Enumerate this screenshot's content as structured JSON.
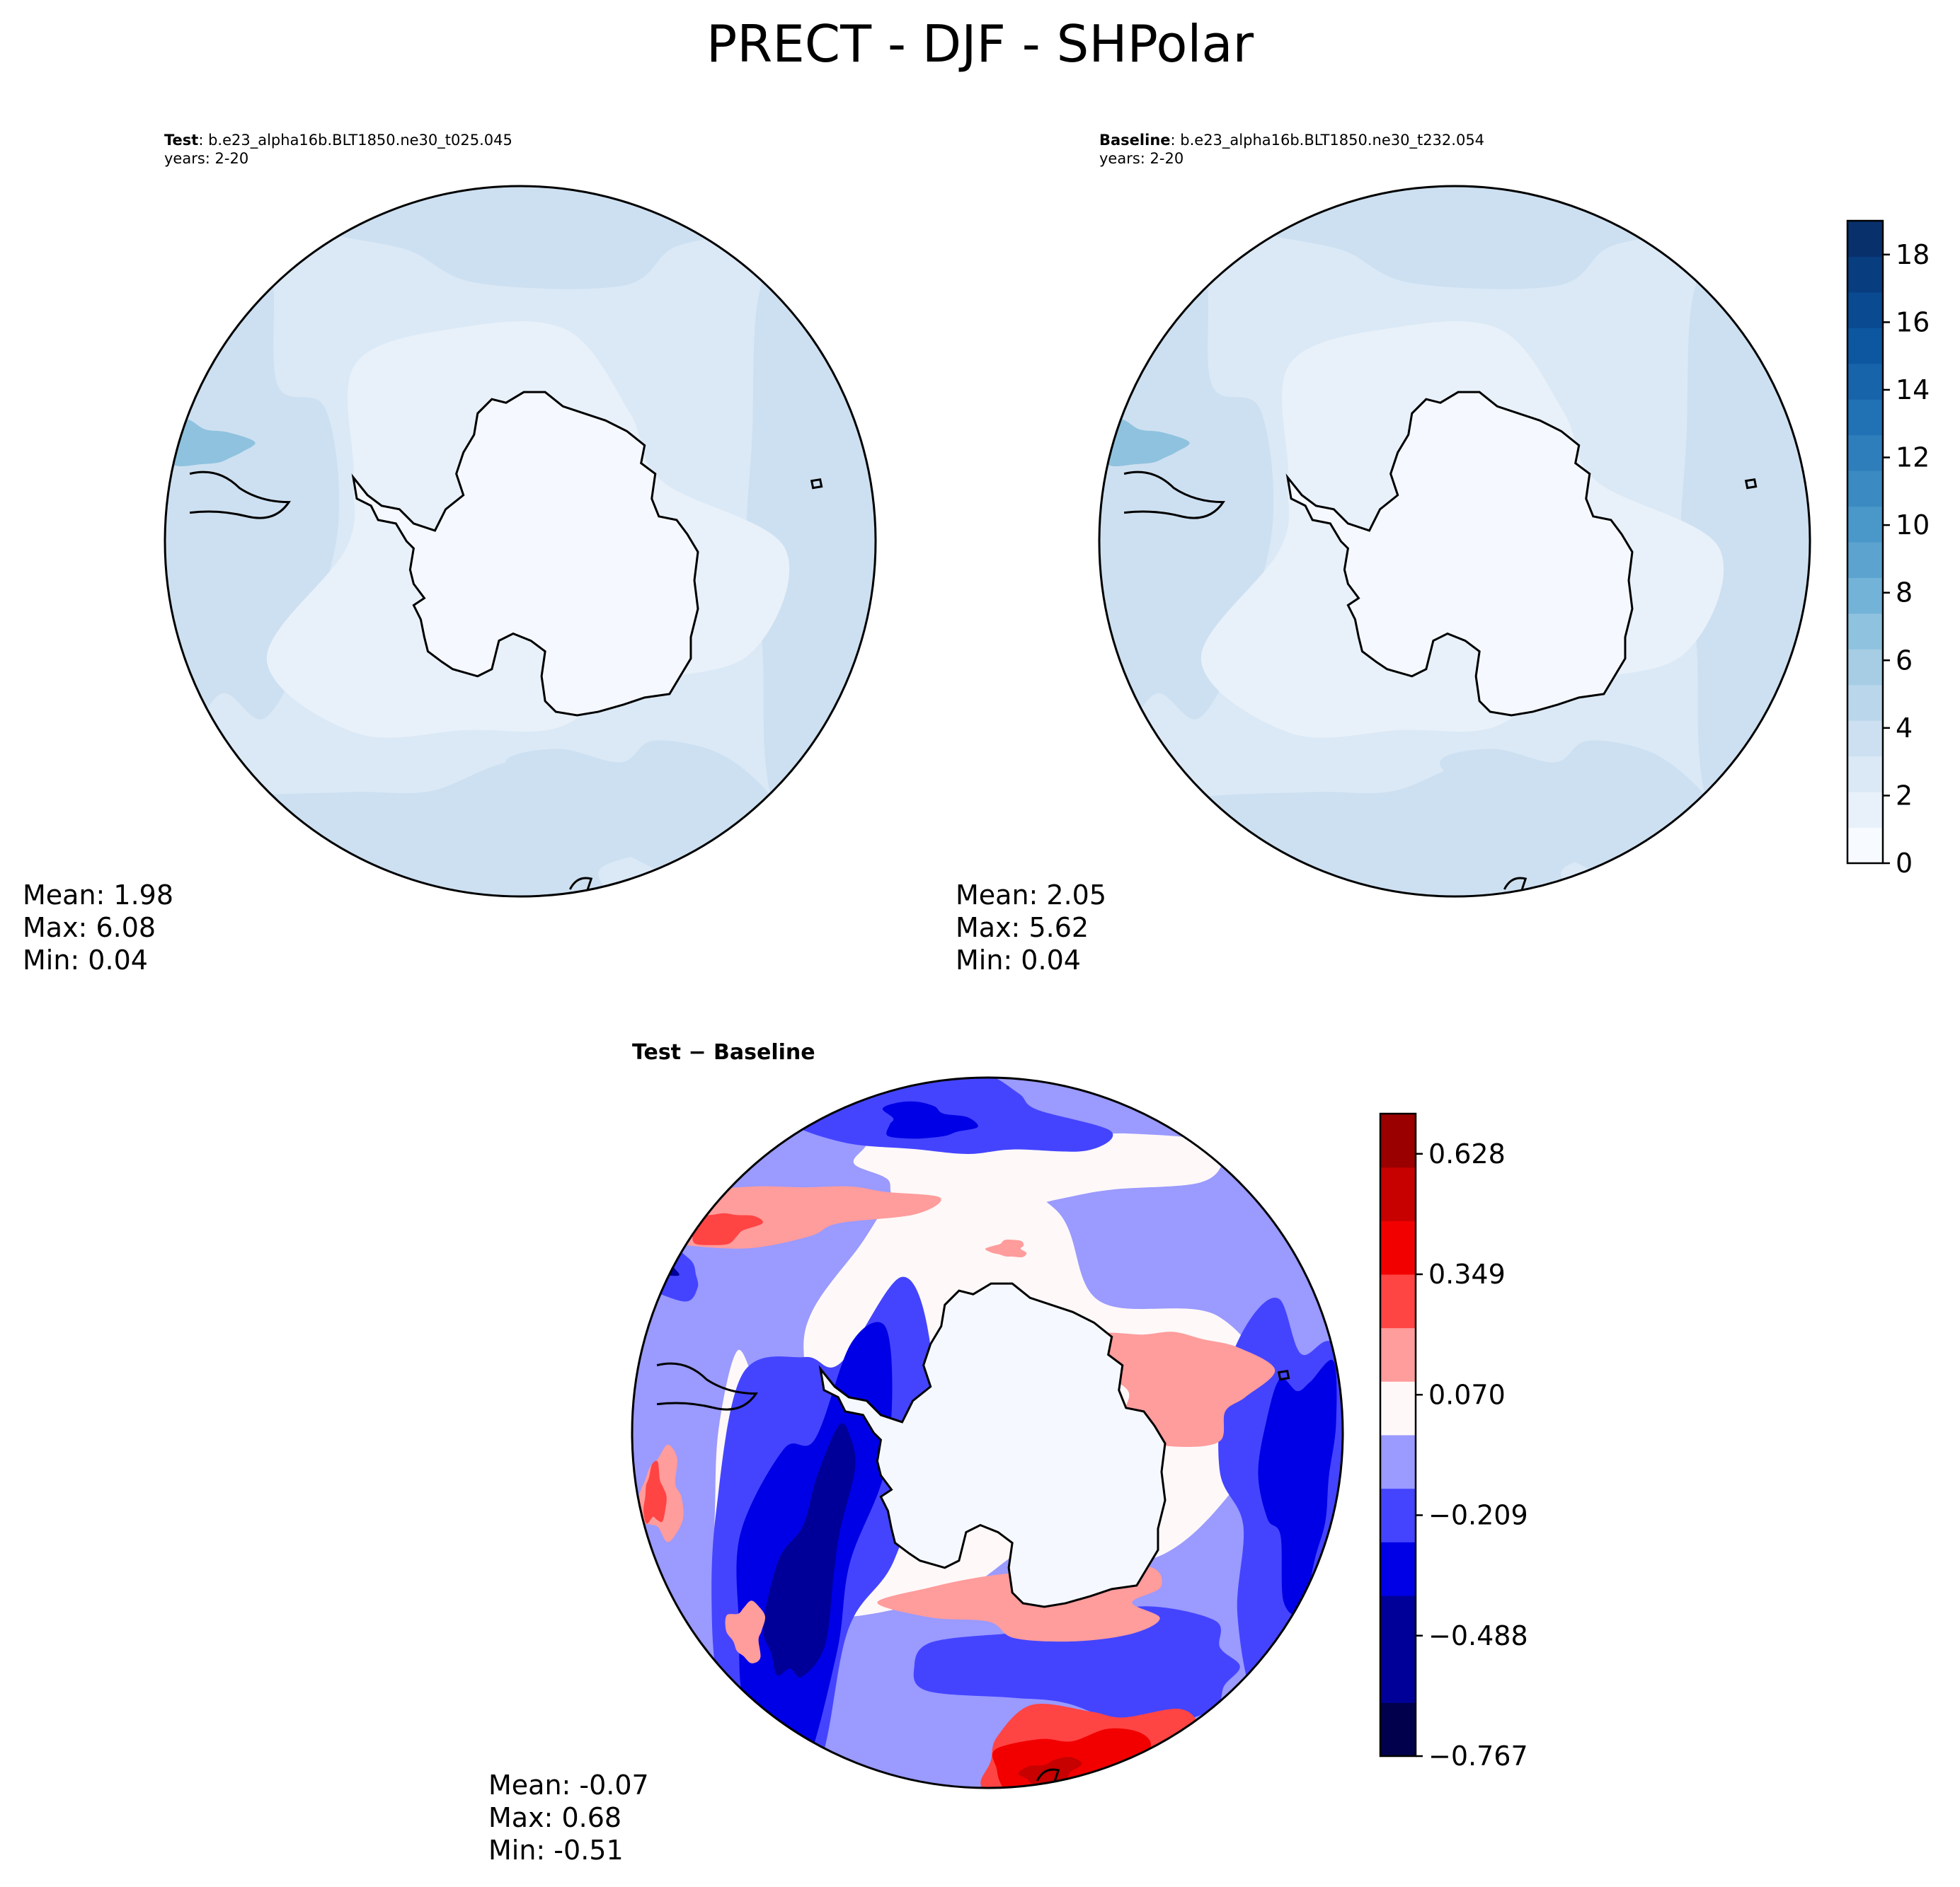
{
  "figure": {
    "title": "PRECT - DJF - SHPolar"
  },
  "panels": {
    "test": {
      "label": "Test",
      "case": ": b.e23_alpha16b.BLT1850.ne30_t025.045",
      "years": "years: 2-20",
      "mean": "Mean:  1.98",
      "max": "Max:  6.08",
      "min": "Min:  0.04"
    },
    "baseline": {
      "label": "Baseline",
      "case": ": b.e23_alpha16b.BLT1850.ne30_t232.054",
      "years": "years: 2-20",
      "mean": "Mean:  2.05",
      "max": "Max:  5.62",
      "min": "Min:  0.04"
    },
    "diff": {
      "title": "Test − Baseline",
      "mean": "Mean: -0.07",
      "max": "Max:  0.68",
      "min": "Min: -0.51"
    }
  },
  "chart_data": [
    {
      "type": "heatmap",
      "name": "Test",
      "projection": "south-polar-stereographic",
      "colormap": "Blues",
      "levels": [
        0,
        1,
        2,
        3,
        4,
        5,
        6,
        7,
        8,
        9,
        10,
        11,
        12,
        13,
        14,
        15,
        16,
        17,
        18,
        19
      ],
      "colorbar_ticks": [
        "0",
        "2",
        "4",
        "6",
        "8",
        "10",
        "12",
        "14",
        "16",
        "18"
      ],
      "stats": {
        "mean": 1.98,
        "max": 6.08,
        "min": 0.04
      }
    },
    {
      "type": "heatmap",
      "name": "Baseline",
      "projection": "south-polar-stereographic",
      "colormap": "Blues",
      "levels": [
        0,
        1,
        2,
        3,
        4,
        5,
        6,
        7,
        8,
        9,
        10,
        11,
        12,
        13,
        14,
        15,
        16,
        17,
        18,
        19
      ],
      "colorbar_ticks": [
        "0",
        "2",
        "4",
        "6",
        "8",
        "10",
        "12",
        "14",
        "16",
        "18"
      ],
      "stats": {
        "mean": 2.05,
        "max": 5.62,
        "min": 0.04
      }
    },
    {
      "type": "heatmap",
      "name": "Test − Baseline",
      "projection": "south-polar-stereographic",
      "colormap": "seismic",
      "levels": [
        -0.767,
        -0.674,
        -0.581,
        -0.488,
        -0.395,
        -0.302,
        -0.209,
        -0.116,
        -0.023,
        0.07,
        0.163,
        0.256,
        0.349,
        0.442,
        0.535,
        0.628,
        0.721
      ],
      "colorbar_ticks": [
        "−0.767",
        "−0.488",
        "−0.209",
        "0.070",
        "0.349",
        "0.628"
      ],
      "stats": {
        "mean": -0.07,
        "max": 0.68,
        "min": -0.51
      }
    }
  ],
  "colors": {
    "blues": [
      "#f7fbff",
      "#e8f1fa",
      "#dbe9f6",
      "#cde0f1",
      "#bad6eb",
      "#a6cde4",
      "#8fc2de",
      "#74b3d8",
      "#5ca3d0",
      "#4a98c9",
      "#3b8bc2",
      "#2f7ebc",
      "#2171b5",
      "#1764ab",
      "#0d57a1",
      "#094a91",
      "#083d7f",
      "#08306b"
    ],
    "seismic": [
      "#00004c",
      "#000099",
      "#0000e6",
      "#4444ff",
      "#9a9aff",
      "#fff8f8",
      "#ff9c9c",
      "#ff4444",
      "#f20000",
      "#c70000",
      "#9a0000"
    ],
    "land": "#f5f9ff",
    "coast": "#000000"
  }
}
